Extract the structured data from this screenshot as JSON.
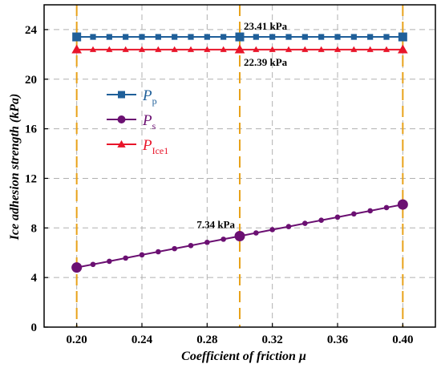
{
  "chart_data": {
    "type": "line",
    "xlabel": "Coefficient of friction μ",
    "ylabel": "Ice adhesion strength (kPa)",
    "xlim": [
      0.18,
      0.42
    ],
    "ylim": [
      0,
      26
    ],
    "x_ticks": [
      0.2,
      0.24,
      0.28,
      0.32,
      0.36,
      0.4
    ],
    "x_tick_labels": [
      "0.20",
      "0.24",
      "0.28",
      "0.32",
      "0.36",
      "0.40"
    ],
    "y_ticks": [
      0,
      4,
      8,
      12,
      16,
      20,
      24
    ],
    "y_tick_labels": [
      "0",
      "4",
      "8",
      "12",
      "16",
      "20",
      "24"
    ],
    "grid": true,
    "legend_position": "upper-left",
    "reference_lines_x": [
      0.2,
      0.3,
      0.4
    ],
    "x": [
      0.2,
      0.21,
      0.22,
      0.23,
      0.24,
      0.25,
      0.26,
      0.27,
      0.28,
      0.29,
      0.3,
      0.31,
      0.32,
      0.33,
      0.34,
      0.35,
      0.36,
      0.37,
      0.38,
      0.39,
      0.4
    ],
    "large_marker_x": [
      0.2,
      0.3,
      0.4
    ],
    "series": [
      {
        "name_main": "P",
        "name_sub": "p",
        "color": "#1f5f99",
        "marker": "square",
        "values": [
          23.41,
          23.41,
          23.41,
          23.41,
          23.41,
          23.41,
          23.41,
          23.41,
          23.41,
          23.41,
          23.41,
          23.41,
          23.41,
          23.41,
          23.41,
          23.41,
          23.41,
          23.41,
          23.41,
          23.41,
          23.41
        ]
      },
      {
        "name_main": "P",
        "name_sub": "s",
        "color": "#6b1072",
        "marker": "circle",
        "values": [
          4.81,
          5.06,
          5.31,
          5.57,
          5.83,
          6.08,
          6.33,
          6.58,
          6.84,
          7.09,
          7.34,
          7.6,
          7.86,
          8.11,
          8.37,
          8.62,
          8.87,
          9.13,
          9.38,
          9.64,
          9.89
        ]
      },
      {
        "name_main": "P",
        "name_sub": "Ice1",
        "color": "#e8152a",
        "marker": "triangle",
        "values": [
          22.39,
          22.39,
          22.39,
          22.39,
          22.39,
          22.39,
          22.39,
          22.39,
          22.39,
          22.39,
          22.39,
          22.39,
          22.39,
          22.39,
          22.39,
          22.39,
          22.39,
          22.39,
          22.39,
          22.39,
          22.39
        ]
      }
    ],
    "annotations": [
      {
        "text": "23.41 kPa",
        "x": 0.3,
        "y": 23.41,
        "placement": "above"
      },
      {
        "text": "22.39 kPa",
        "x": 0.3,
        "y": 22.39,
        "placement": "below"
      },
      {
        "text": "7.34 kPa",
        "x": 0.3,
        "y": 7.34,
        "placement": "left-above"
      }
    ],
    "colors": {
      "reference_line": "#e8a21a",
      "grid": "#b0b0b0",
      "axis": "#000000"
    }
  }
}
